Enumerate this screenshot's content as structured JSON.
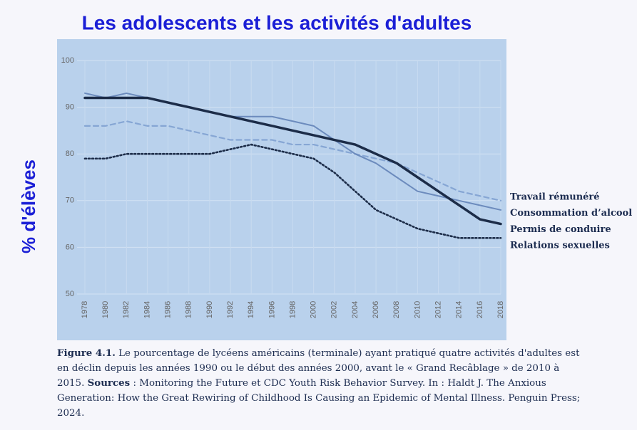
{
  "chart_data": {
    "type": "line",
    "title": "Les adolescents et les activités d'adultes",
    "y_label": "% d'élèves",
    "x": [
      1978,
      1980,
      1982,
      1984,
      1986,
      1988,
      1990,
      1992,
      1994,
      1996,
      1998,
      2000,
      2002,
      2004,
      2006,
      2008,
      2010,
      2012,
      2014,
      2016,
      2018
    ],
    "xlim": [
      1978,
      2018
    ],
    "xticks": [
      1978,
      1980,
      1982,
      1984,
      1986,
      1988,
      1990,
      1992,
      1994,
      1996,
      1998,
      2000,
      2002,
      2004,
      2006,
      2008,
      2010,
      2012,
      2014,
      2016,
      2018
    ],
    "ylim": [
      50,
      100
    ],
    "yticks": [
      50,
      60,
      70,
      80,
      90,
      100
    ],
    "grid": true,
    "legend": "right",
    "series": [
      {
        "name": "Travail rémunéré",
        "color": "#86a6d4",
        "style": "dashed",
        "values": [
          86,
          86,
          87,
          86,
          86,
          85,
          84,
          83,
          83,
          83,
          82,
          82,
          81,
          80,
          79,
          78,
          76,
          74,
          72,
          71,
          70
        ]
      },
      {
        "name": "Consommation d’alcool",
        "color": "#6c8bbd",
        "style": "solid",
        "values": [
          93,
          92,
          93,
          92,
          91,
          90,
          89,
          88,
          88,
          88,
          87,
          86,
          83,
          80,
          78,
          75,
          72,
          71,
          70,
          69,
          68
        ]
      },
      {
        "name": "Permis de conduire",
        "color": "#1c2c48",
        "style": "thick",
        "values": [
          92,
          92,
          92,
          92,
          91,
          90,
          89,
          88,
          87,
          86,
          85,
          84,
          83,
          82,
          80,
          78,
          75,
          72,
          69,
          66,
          65
        ]
      },
      {
        "name": "Relations sexuelles",
        "color": "#1c2c48",
        "style": "dotted",
        "values": [
          79,
          79,
          80,
          80,
          80,
          80,
          80,
          81,
          82,
          81,
          80,
          79,
          76,
          72,
          68,
          66,
          64,
          63,
          62,
          62,
          62
        ]
      }
    ],
    "caption": {
      "label": "Figure 4.1.",
      "text1": " Le pourcentage de lycéens américains (terminale) ayant pratiqué quatre activités d'adultes est en déclin depuis les années 1990 ou le début des années 2000, avant le « Grand Recâblage » de 2010 à 2015. ",
      "sources_label": "Sources",
      "text2": " : Monitoring the Future et CDC Youth Risk Behavior Survey. In : Haldt J. The Anxious Generation: How the Great Rewiring of Childhood Is Causing an Epidemic of Mental Illness. Penguin Press; 2024."
    }
  }
}
